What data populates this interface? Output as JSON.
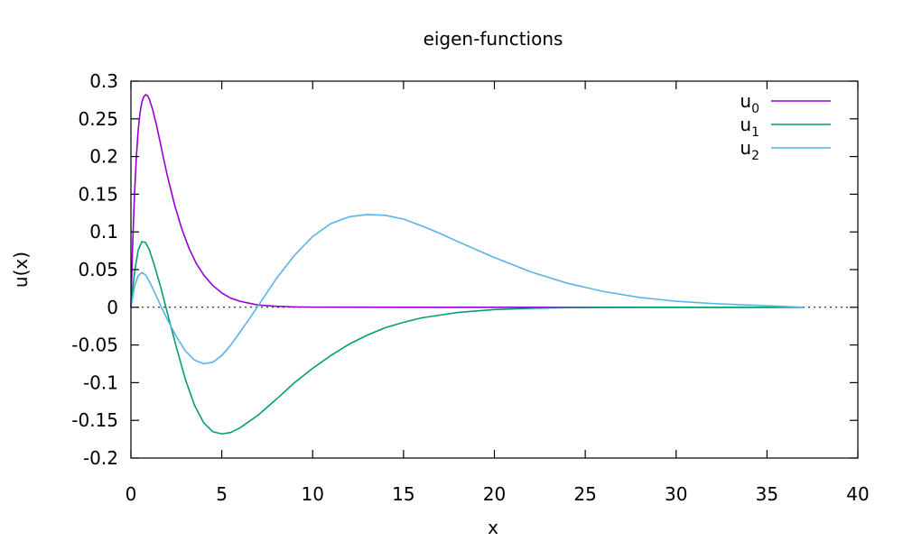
{
  "chart_data": {
    "type": "line",
    "title": "eigen-functions",
    "xlabel": "x",
    "ylabel": "u(x)",
    "xlim": [
      0,
      40
    ],
    "ylim": [
      -0.2,
      0.3
    ],
    "xticks": [
      0,
      5,
      10,
      15,
      20,
      25,
      30,
      35,
      40
    ],
    "yticks": [
      0.3,
      0.25,
      0.2,
      0.15,
      0.1,
      0.05,
      0,
      -0.05,
      -0.1,
      -0.15,
      -0.2
    ],
    "grid": false,
    "legend_position": "top-right",
    "zero_line": "dotted",
    "series": [
      {
        "name": "u",
        "subscript": "0",
        "color": "#9400d3",
        "x": [
          0,
          0.1,
          0.2,
          0.3,
          0.4,
          0.5,
          0.6,
          0.7,
          0.8,
          0.9,
          1.0,
          1.2,
          1.4,
          1.6,
          1.8,
          2.0,
          2.4,
          2.8,
          3.2,
          3.6,
          4.0,
          4.5,
          5.0,
          5.5,
          6.0,
          7.0,
          8.0,
          9.0,
          10.0,
          12.0,
          15.0,
          20.0,
          25.0,
          30.0,
          37.0
        ],
        "y": [
          0,
          0.088,
          0.152,
          0.2,
          0.235,
          0.258,
          0.272,
          0.279,
          0.282,
          0.281,
          0.277,
          0.262,
          0.242,
          0.22,
          0.197,
          0.175,
          0.136,
          0.104,
          0.078,
          0.058,
          0.043,
          0.029,
          0.019,
          0.012,
          0.008,
          0.003,
          0.0013,
          0.0005,
          0.0002,
          0.0001,
          0,
          0,
          0,
          0,
          0
        ]
      },
      {
        "name": "u",
        "subscript": "1",
        "color": "#009e73",
        "x": [
          0,
          0.2,
          0.4,
          0.6,
          0.8,
          1.0,
          1.3,
          1.6,
          2.0,
          2.5,
          3.0,
          3.5,
          4.0,
          4.5,
          5.0,
          5.5,
          6.0,
          7.0,
          8.0,
          9.0,
          10.0,
          11.0,
          12.0,
          13.0,
          14.0,
          15.0,
          16.0,
          18.0,
          20.0,
          22.0,
          24.0,
          26.0,
          30.0,
          37.0
        ],
        "y": [
          0,
          0.047,
          0.076,
          0.087,
          0.086,
          0.077,
          0.055,
          0.03,
          -0.007,
          -0.053,
          -0.096,
          -0.13,
          -0.153,
          -0.165,
          -0.168,
          -0.166,
          -0.16,
          -0.143,
          -0.122,
          -0.1,
          -0.081,
          -0.064,
          -0.049,
          -0.037,
          -0.027,
          -0.02,
          -0.014,
          -0.0068,
          -0.003,
          -0.0013,
          -0.0005,
          -0.0002,
          0,
          0
        ]
      },
      {
        "name": "u",
        "subscript": "2",
        "color": "#56b4e9",
        "x": [
          0,
          0.2,
          0.4,
          0.6,
          0.8,
          1.0,
          1.3,
          1.6,
          2.0,
          2.5,
          3.0,
          3.5,
          4.0,
          4.5,
          5.0,
          5.5,
          6.0,
          6.5,
          7.0,
          7.5,
          8.0,
          9.0,
          10.0,
          11.0,
          12.0,
          13.0,
          14.0,
          15.0,
          16.0,
          17.0,
          18.0,
          20.0,
          22.0,
          24.0,
          26.0,
          28.0,
          30.0,
          32.0,
          34.0,
          36.0,
          37.0
        ],
        "y": [
          0,
          0.028,
          0.042,
          0.046,
          0.043,
          0.035,
          0.02,
          0.004,
          -0.016,
          -0.039,
          -0.058,
          -0.07,
          -0.075,
          -0.073,
          -0.064,
          -0.05,
          -0.033,
          -0.016,
          0.002,
          0.02,
          0.038,
          0.069,
          0.094,
          0.111,
          0.12,
          0.123,
          0.122,
          0.117,
          0.108,
          0.098,
          0.087,
          0.066,
          0.047,
          0.032,
          0.021,
          0.013,
          0.008,
          0.005,
          0.003,
          0.001,
          0
        ]
      }
    ]
  }
}
